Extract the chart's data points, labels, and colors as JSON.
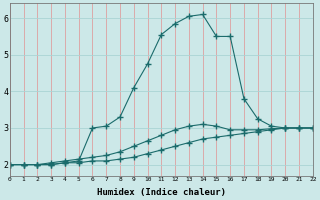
{
  "xlabel": "Humidex (Indice chaleur)",
  "ylabel": "",
  "bg_color": "#cce8e8",
  "line_color": "#1a6b6b",
  "x_values": [
    0,
    1,
    2,
    3,
    4,
    5,
    6,
    7,
    8,
    9,
    10,
    11,
    12,
    13,
    14,
    15,
    16,
    17,
    18,
    19,
    20,
    21,
    22
  ],
  "line1": [
    2.0,
    2.0,
    2.0,
    2.0,
    2.05,
    2.05,
    2.1,
    2.1,
    2.15,
    2.2,
    2.3,
    2.4,
    2.5,
    2.6,
    2.7,
    2.75,
    2.8,
    2.85,
    2.9,
    2.95,
    3.0,
    3.0,
    3.0
  ],
  "line2": [
    2.0,
    2.0,
    2.0,
    2.05,
    2.1,
    2.15,
    2.2,
    2.25,
    2.35,
    2.5,
    2.65,
    2.8,
    2.95,
    3.05,
    3.1,
    3.05,
    2.95,
    2.95,
    2.95,
    2.98,
    3.0,
    3.0,
    3.0
  ],
  "line3": [
    2.0,
    2.0,
    2.0,
    2.0,
    2.05,
    2.1,
    3.0,
    3.05,
    3.3,
    4.1,
    4.75,
    5.55,
    5.85,
    6.05,
    6.1,
    5.5,
    5.5,
    3.8,
    3.25,
    3.05,
    3.0,
    3.0,
    3.0
  ],
  "ylim": [
    1.7,
    6.4
  ],
  "xlim": [
    0,
    22
  ],
  "yticks": [
    2,
    3,
    4,
    5,
    6
  ],
  "xticks": [
    0,
    1,
    2,
    3,
    4,
    5,
    6,
    7,
    8,
    9,
    10,
    11,
    12,
    13,
    14,
    15,
    16,
    17,
    18,
    19,
    20,
    21,
    22
  ],
  "grid_color": "#aad4d4",
  "grid_color_red": "#dda0a0",
  "figsize": [
    3.2,
    2.0
  ],
  "dpi": 100
}
